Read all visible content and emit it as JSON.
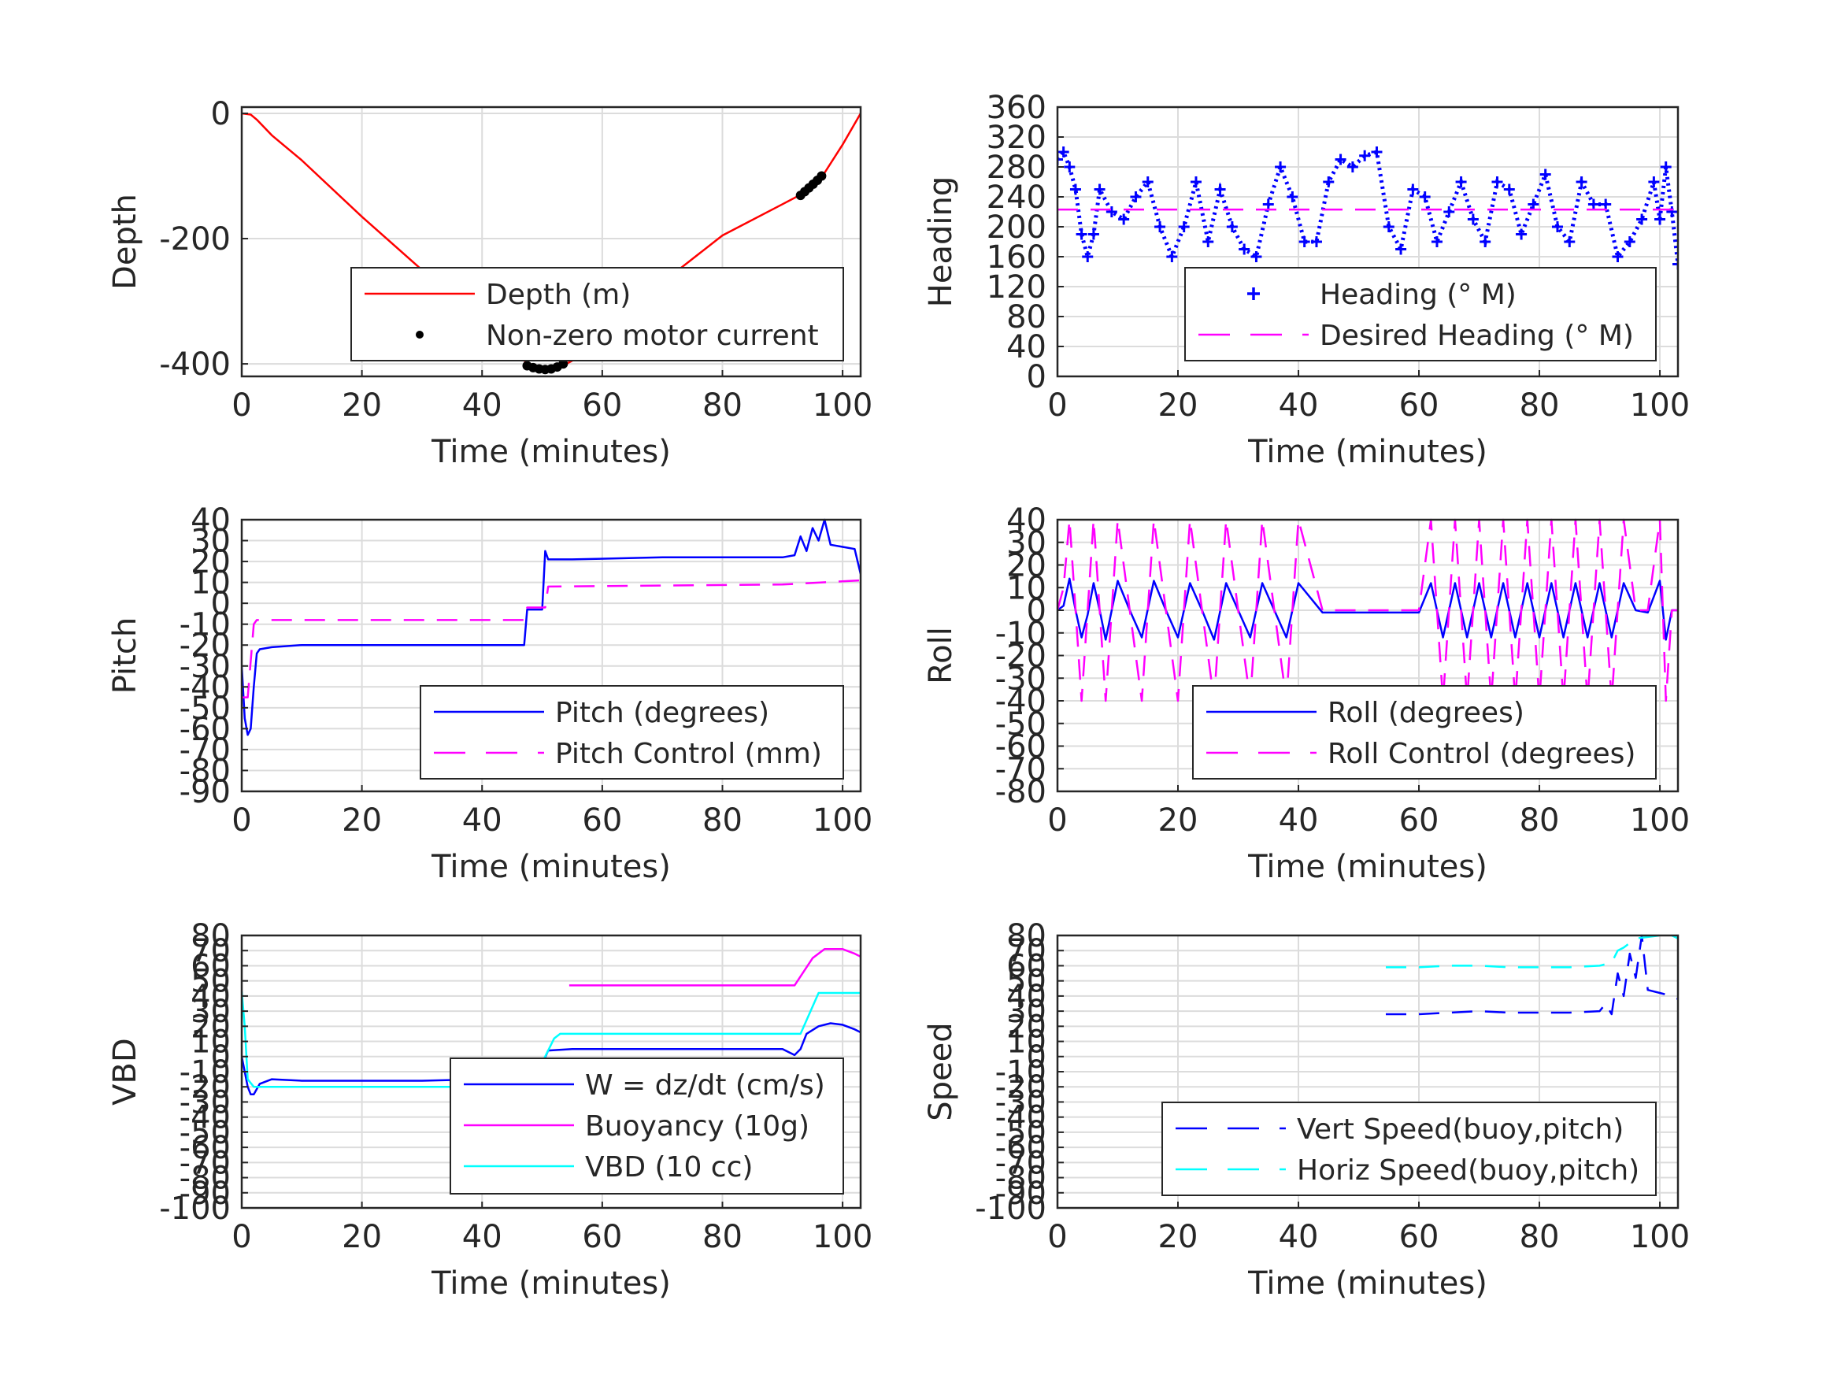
{
  "chart_data": [
    {
      "id": "depth",
      "type": "line",
      "xlabel": "Time (minutes)",
      "ylabel": "Depth",
      "xlim": [
        0,
        103
      ],
      "ylim": [
        -420,
        10
      ],
      "xticks": [
        0,
        20,
        40,
        60,
        80,
        100
      ],
      "yticks": [
        0,
        -200,
        -400
      ],
      "yticklabels": [
        "0",
        "-200",
        "-400"
      ],
      "grid": true,
      "legend_position": "bottom-right",
      "series": [
        {
          "name": "Depth (m)",
          "style": "line",
          "color": "#ff0000",
          "x": [
            0,
            1.5,
            2.5,
            5,
            10,
            20,
            30,
            40,
            47,
            49,
            51,
            53,
            55,
            60,
            70,
            80,
            90,
            93,
            95,
            97,
            100,
            103
          ],
          "y": [
            0,
            -2,
            -10,
            -35,
            -75,
            -165,
            -250,
            -335,
            -395,
            -405,
            -408,
            -405,
            -395,
            -350,
            -270,
            -195,
            -145,
            -130,
            -115,
            -95,
            -50,
            0
          ]
        },
        {
          "name": "Non-zero motor current",
          "style": "dots",
          "color": "#000000",
          "x": [
            47.5,
            48.5,
            49.5,
            50.5,
            51.5,
            52.5,
            53.5,
            93,
            93.7,
            94.4,
            95.1,
            95.8,
            96.5
          ],
          "y": [
            -403,
            -406,
            -408,
            -409,
            -408,
            -405,
            -400,
            -131,
            -125,
            -119,
            -113,
            -107,
            -100
          ]
        }
      ]
    },
    {
      "id": "heading",
      "type": "line",
      "xlabel": "Time (minutes)",
      "ylabel": "Heading",
      "xlim": [
        0,
        103
      ],
      "ylim": [
        0,
        360
      ],
      "xticks": [
        0,
        20,
        40,
        60,
        80,
        100
      ],
      "yticks": [
        0,
        40,
        80,
        120,
        160,
        200,
        240,
        280,
        320,
        360
      ],
      "yticklabels": [
        "0",
        "40",
        "80",
        "120",
        "160",
        "200",
        "240",
        "280",
        "320",
        "360"
      ],
      "grid": true,
      "legend_position": "bottom-right",
      "series": [
        {
          "name": "Heading (° M)",
          "style": "plus",
          "color": "#0000ff",
          "x": [
            0,
            1,
            2,
            3,
            4,
            5,
            6,
            7,
            9,
            11,
            13,
            15,
            17,
            19,
            21,
            23,
            25,
            27,
            29,
            31,
            33,
            35,
            37,
            39,
            41,
            43,
            45,
            47,
            49,
            51,
            53,
            55,
            57,
            59,
            61,
            63,
            65,
            67,
            69,
            71,
            73,
            75,
            77,
            79,
            81,
            83,
            85,
            87,
            89,
            91,
            93,
            95,
            97,
            99,
            100,
            101,
            102,
            103
          ],
          "y": [
            290,
            300,
            280,
            250,
            190,
            160,
            190,
            250,
            220,
            210,
            240,
            260,
            200,
            160,
            200,
            260,
            180,
            250,
            200,
            170,
            160,
            230,
            280,
            240,
            180,
            180,
            260,
            290,
            280,
            295,
            300,
            200,
            170,
            250,
            240,
            180,
            220,
            260,
            210,
            180,
            260,
            250,
            190,
            230,
            270,
            200,
            180,
            260,
            230,
            230,
            160,
            180,
            210,
            260,
            210,
            280,
            220,
            150
          ]
        },
        {
          "name": "Desired Heading (° M)",
          "style": "dash",
          "color": "#ff00ff",
          "x": [
            0,
            50,
            53,
            103
          ],
          "y": [
            223,
            223,
            223,
            223
          ]
        }
      ]
    },
    {
      "id": "pitch",
      "type": "line",
      "xlabel": "Time (minutes)",
      "ylabel": "Pitch",
      "xlim": [
        0,
        103
      ],
      "ylim": [
        -90,
        40
      ],
      "xticks": [
        0,
        20,
        40,
        60,
        80,
        100
      ],
      "yticks": [
        40,
        30,
        20,
        10,
        0,
        -10,
        -20,
        -30,
        -40,
        -50,
        -60,
        -70,
        -80,
        -90
      ],
      "yticklabels": [
        "40",
        "30",
        "20",
        "10",
        "0",
        "-10",
        "-20",
        "-30",
        "-40",
        "-50",
        "-60",
        "-70",
        "-80",
        "-90"
      ],
      "grid": true,
      "legend_position": "bottom-right",
      "series": [
        {
          "name": "Pitch (degrees)",
          "style": "line",
          "color": "#0000ff",
          "x": [
            0,
            0.5,
            1,
            1.5,
            2,
            2.5,
            3,
            5,
            10,
            20,
            30,
            40,
            47,
            47.5,
            50,
            50.5,
            51,
            55,
            70,
            90,
            92,
            93,
            94,
            95,
            96,
            97,
            98,
            100,
            102,
            103
          ],
          "y": [
            -30,
            -55,
            -63,
            -60,
            -40,
            -24,
            -22,
            -21,
            -20,
            -20,
            -20,
            -20,
            -20,
            -3,
            -3,
            25,
            21,
            21,
            22,
            22,
            23,
            32,
            25,
            36,
            30,
            40,
            28,
            27,
            26,
            14
          ]
        },
        {
          "name": "Pitch Control (mm)",
          "style": "dash",
          "color": "#ff00ff",
          "x": [
            0,
            1,
            2,
            2.5,
            4,
            47,
            47.5,
            50.5,
            51,
            90,
            103
          ],
          "y": [
            -45,
            -45,
            -10,
            -8,
            -8,
            -8,
            -2,
            -2,
            8,
            9,
            11
          ]
        }
      ]
    },
    {
      "id": "roll",
      "type": "line",
      "xlabel": "Time (minutes)",
      "ylabel": "Roll",
      "xlim": [
        0,
        103
      ],
      "ylim": [
        -80,
        40
      ],
      "xticks": [
        0,
        20,
        40,
        60,
        80,
        100
      ],
      "yticks": [
        40,
        30,
        20,
        10,
        0,
        -10,
        -20,
        -30,
        -40,
        -50,
        -60,
        -70,
        -80
      ],
      "yticklabels": [
        "40",
        "30",
        "20",
        "10",
        "0",
        "-10",
        "-20",
        "-30",
        "-40",
        "-50",
        "-60",
        "-70",
        "-80"
      ],
      "grid": true,
      "legend_position": "bottom-right",
      "series": [
        {
          "name": "Roll (degrees)",
          "style": "line",
          "color": "#0000ff",
          "x": [
            0,
            1,
            2,
            3,
            4,
            5,
            6,
            7,
            8,
            9,
            10,
            12,
            14,
            16,
            18,
            20,
            22,
            24,
            26,
            28,
            30,
            32,
            34,
            36,
            38,
            40,
            44,
            48,
            52,
            56,
            60,
            62,
            64,
            66,
            68,
            70,
            72,
            74,
            76,
            78,
            80,
            82,
            84,
            86,
            88,
            90,
            92,
            94,
            96,
            98,
            100,
            101,
            102,
            103
          ],
          "y": [
            0,
            2,
            14,
            0,
            -12,
            -2,
            12,
            0,
            -13,
            0,
            13,
            0,
            -12,
            13,
            0,
            -12,
            12,
            0,
            -13,
            12,
            0,
            -12,
            12,
            0,
            -12,
            12,
            -1,
            -1,
            -1,
            -1,
            -1,
            12,
            -12,
            12,
            -12,
            12,
            -12,
            12,
            -12,
            12,
            -12,
            12,
            -12,
            12,
            -12,
            12,
            -12,
            12,
            0,
            -1,
            13,
            -13,
            0,
            0
          ]
        },
        {
          "name": "Roll Control (degrees)",
          "style": "dash",
          "color": "#ff00ff",
          "x": [
            0,
            1,
            2,
            3,
            4,
            5,
            6,
            7,
            8,
            9,
            10,
            12,
            14,
            16,
            18,
            20,
            22,
            24,
            26,
            28,
            30,
            32,
            34,
            36,
            38,
            40,
            44,
            48,
            52,
            56,
            60,
            62,
            64,
            66,
            68,
            70,
            72,
            74,
            76,
            78,
            80,
            82,
            84,
            86,
            88,
            90,
            92,
            94,
            96,
            98,
            100,
            101,
            102,
            103
          ],
          "y": [
            0,
            10,
            40,
            0,
            -40,
            0,
            40,
            0,
            -40,
            0,
            40,
            0,
            -40,
            40,
            0,
            -40,
            40,
            0,
            -40,
            40,
            0,
            -40,
            40,
            0,
            -40,
            40,
            0,
            0,
            0,
            0,
            0,
            40,
            -40,
            40,
            -40,
            40,
            -40,
            40,
            -40,
            40,
            -40,
            40,
            -40,
            40,
            -40,
            40,
            -40,
            40,
            0,
            0,
            40,
            -40,
            0,
            0
          ]
        }
      ]
    },
    {
      "id": "vbd",
      "type": "line",
      "xlabel": "Time (minutes)",
      "ylabel": "VBD",
      "xlim": [
        0,
        103
      ],
      "ylim": [
        -100,
        80
      ],
      "xticks": [
        0,
        20,
        40,
        60,
        80,
        100
      ],
      "yticks": [
        80,
        70,
        60,
        50,
        40,
        30,
        20,
        10,
        0,
        -10,
        -20,
        -30,
        -40,
        -50,
        -60,
        -70,
        -80,
        -90,
        -100
      ],
      "yticklabels": [
        "80",
        "70",
        "60",
        "50",
        "40",
        "30",
        "20",
        "10",
        "0",
        "-10",
        "-20",
        "-30",
        "-40",
        "-50",
        "-60",
        "-70",
        "-80",
        "-90",
        "-100"
      ],
      "grid": true,
      "legend_position": "bottom-right",
      "series": [
        {
          "name": "W = dz/dt (cm/s)",
          "style": "line",
          "color": "#0000ff",
          "x": [
            0,
            0.5,
            1,
            1.5,
            2,
            3,
            5,
            10,
            20,
            30,
            40,
            47,
            47.5,
            50,
            51,
            55,
            60,
            70,
            80,
            90,
            92,
            93,
            94,
            96,
            98,
            100,
            102,
            103
          ],
          "y": [
            0,
            -10,
            -20,
            -25,
            -25,
            -18,
            -15,
            -16,
            -16,
            -16,
            -15,
            -15,
            -7,
            -5,
            4,
            5,
            5,
            5,
            5,
            5,
            1,
            5,
            15,
            20,
            22,
            21,
            18,
            16
          ]
        },
        {
          "name": "Buoyancy (10g)",
          "style": "line",
          "color": "#ff00ff",
          "x": [
            54.5,
            60,
            80,
            92,
            95,
            97,
            100,
            102,
            103
          ],
          "y": [
            47,
            47,
            47,
            47,
            65,
            71,
            71,
            68,
            66
          ]
        },
        {
          "name": "VBD (10 cc)",
          "style": "line",
          "color": "#00ffff",
          "x": [
            0,
            0.5,
            1,
            2,
            3,
            5,
            20,
            40,
            48,
            52,
            53,
            60,
            80,
            93,
            96,
            103
          ],
          "y": [
            43,
            20,
            -15,
            -20,
            -20,
            -20,
            -20,
            -20,
            -20,
            12,
            15,
            15,
            15,
            15,
            42,
            42
          ]
        }
      ]
    },
    {
      "id": "speed",
      "type": "line",
      "xlabel": "Time (minutes)",
      "ylabel": "Speed",
      "xlim": [
        0,
        103
      ],
      "ylim": [
        -100,
        80
      ],
      "xticks": [
        0,
        20,
        40,
        60,
        80,
        100
      ],
      "yticks": [
        80,
        70,
        60,
        50,
        40,
        30,
        20,
        10,
        0,
        -10,
        -20,
        -30,
        -40,
        -50,
        -60,
        -70,
        -80,
        -90,
        -100
      ],
      "yticklabels": [
        "80",
        "70",
        "60",
        "50",
        "40",
        "30",
        "20",
        "10",
        "0",
        "-10",
        "-20",
        "-30",
        "-40",
        "-50",
        "-60",
        "-70",
        "-80",
        "-90",
        "-100"
      ],
      "grid": true,
      "legend_position": "bottom-left",
      "series": [
        {
          "name": "Vert Speed(buoy,pitch)",
          "style": "dash",
          "color": "#0000ff",
          "x": [
            54.5,
            60,
            65,
            70,
            75,
            80,
            85,
            90,
            91,
            92,
            93,
            94,
            95,
            96,
            97,
            98,
            100,
            102,
            103
          ],
          "y": [
            28,
            28,
            29,
            30,
            29,
            29,
            29,
            30,
            35,
            28,
            55,
            40,
            68,
            52,
            80,
            44,
            42,
            40,
            38
          ]
        },
        {
          "name": "Horiz Speed(buoy,pitch)",
          "style": "dash",
          "color": "#00ffff",
          "x": [
            54.5,
            60,
            65,
            70,
            75,
            80,
            85,
            90,
            92,
            93,
            94,
            96,
            98,
            100,
            102,
            103
          ],
          "y": [
            59,
            59,
            60,
            60,
            59,
            59,
            59,
            60,
            62,
            70,
            72,
            78,
            79,
            80,
            80,
            78
          ]
        }
      ]
    }
  ]
}
